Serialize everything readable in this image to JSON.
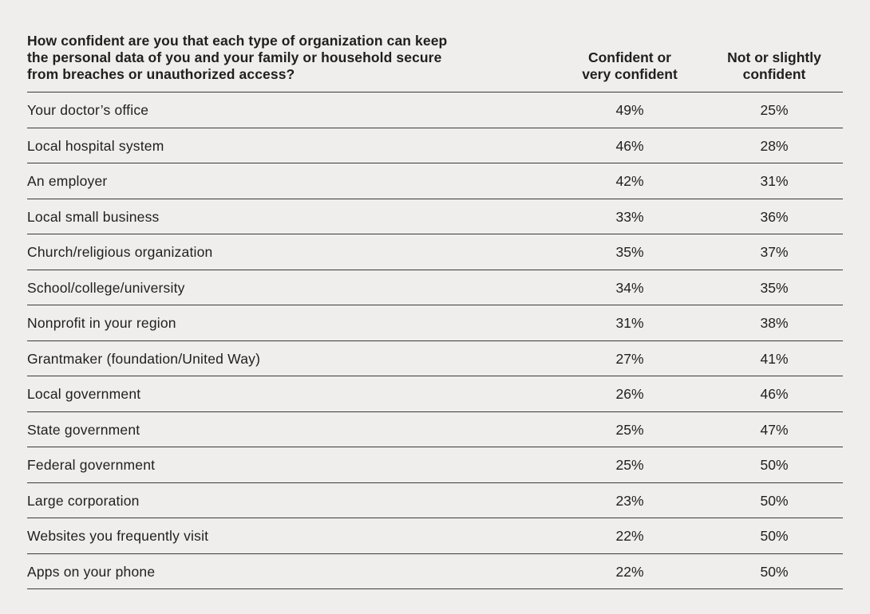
{
  "chart_data": {
    "type": "table",
    "title": "",
    "columns": [
      "How confident are you that each type of organization can keep the personal data of you and your family or household secure from breaches or unauthorized access?",
      "Confident or very confident",
      "Not or slightly confident"
    ],
    "header": {
      "question_lines": [
        "How confident are you that each type of organization can keep",
        "the personal data of you and your family or household secure",
        "from breaches or unauthorized access?"
      ],
      "col1_lines": [
        "Confident or",
        "very confident"
      ],
      "col2_lines": [
        "Not or slightly",
        "confident"
      ]
    },
    "rows": [
      {
        "label": "Your doctor’s office",
        "confident": "49%",
        "not_confident": "25%"
      },
      {
        "label": "Local hospital system",
        "confident": "46%",
        "not_confident": "28%"
      },
      {
        "label": "An employer",
        "confident": "42%",
        "not_confident": "31%"
      },
      {
        "label": "Local small business",
        "confident": "33%",
        "not_confident": "36%"
      },
      {
        "label": "Church/religious organization",
        "confident": "35%",
        "not_confident": "37%"
      },
      {
        "label": "School/college/university",
        "confident": "34%",
        "not_confident": "35%"
      },
      {
        "label": "Nonprofit in your region",
        "confident": "31%",
        "not_confident": "38%"
      },
      {
        "label": "Grantmaker (foundation/United Way)",
        "confident": "27%",
        "not_confident": "41%"
      },
      {
        "label": "Local government",
        "confident": "26%",
        "not_confident": "46%"
      },
      {
        "label": "State government",
        "confident": "25%",
        "not_confident": "47%"
      },
      {
        "label": "Federal government",
        "confident": "25%",
        "not_confident": "50%"
      },
      {
        "label": "Large corporation",
        "confident": "23%",
        "not_confident": "50%"
      },
      {
        "label": "Websites you frequently visit",
        "confident": "22%",
        "not_confident": "50%"
      },
      {
        "label": "Apps on your phone",
        "confident": "22%",
        "not_confident": "50%"
      }
    ]
  }
}
